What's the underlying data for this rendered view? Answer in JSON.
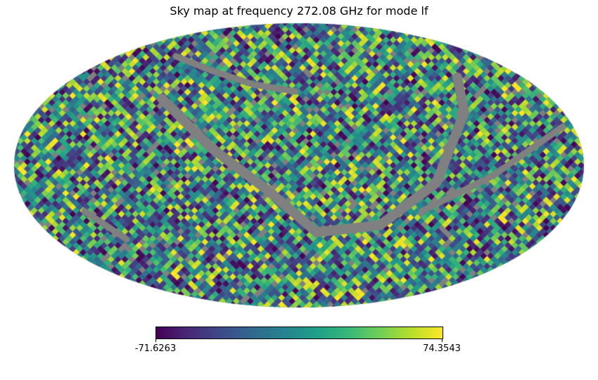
{
  "chart_data": {
    "type": "heatmap",
    "projection": "mollweide",
    "title": "Sky map at frequency 272.08 GHz for mode lf",
    "colormap": "viridis",
    "colorbar": {
      "min": -71.6263,
      "max": 74.3543,
      "min_label": "-71.6263",
      "max_label": "74.3543",
      "placement": "bottom"
    },
    "masked_color": "#808080",
    "grid": false
  }
}
